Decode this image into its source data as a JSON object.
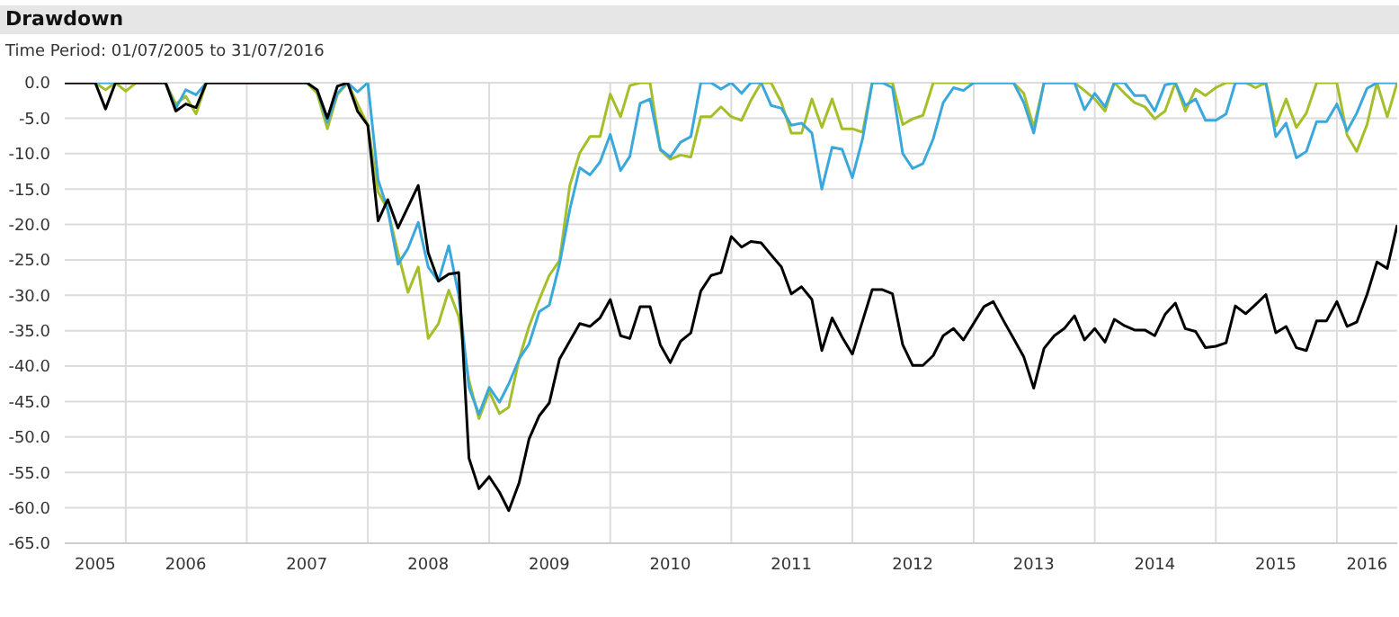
{
  "chart_data": {
    "type": "line",
    "title": "Drawdown",
    "subtitle": "Time Period: 01/07/2005 to 31/07/2016",
    "xlim": [
      "2005-07",
      "2016-07"
    ],
    "xticks": [
      {
        "value": "2005-10",
        "label": "2005"
      },
      {
        "value": "2006-01",
        "label": null
      },
      {
        "value": "2006-07",
        "label": "2006"
      },
      {
        "value": "2007-01",
        "label": null
      },
      {
        "value": "2007-07",
        "label": "2007"
      },
      {
        "value": "2008-01",
        "label": null
      },
      {
        "value": "2008-07",
        "label": "2008"
      },
      {
        "value": "2009-01",
        "label": null
      },
      {
        "value": "2009-07",
        "label": "2009"
      },
      {
        "value": "2010-01",
        "label": null
      },
      {
        "value": "2010-07",
        "label": "2010"
      },
      {
        "value": "2011-01",
        "label": null
      },
      {
        "value": "2011-07",
        "label": "2011"
      },
      {
        "value": "2012-01",
        "label": null
      },
      {
        "value": "2012-07",
        "label": "2012"
      },
      {
        "value": "2013-01",
        "label": null
      },
      {
        "value": "2013-07",
        "label": "2013"
      },
      {
        "value": "2014-01",
        "label": null
      },
      {
        "value": "2014-07",
        "label": "2014"
      },
      {
        "value": "2015-01",
        "label": null
      },
      {
        "value": "2015-07",
        "label": "2015"
      },
      {
        "value": "2016-01",
        "label": null
      },
      {
        "value": "2016-04",
        "label": "2016"
      }
    ],
    "ylim": [
      -65,
      0
    ],
    "yticks": [
      {
        "value": 0,
        "label": "0.0"
      },
      {
        "value": -5,
        "label": "-5.0"
      },
      {
        "value": -10,
        "label": "-10.0"
      },
      {
        "value": -15,
        "label": "-15.0"
      },
      {
        "value": -20,
        "label": "-20.0"
      },
      {
        "value": -25,
        "label": "-25.0"
      },
      {
        "value": -30,
        "label": "-30.0"
      },
      {
        "value": -35,
        "label": "-35.0"
      },
      {
        "value": -40,
        "label": "-40.0"
      },
      {
        "value": -45,
        "label": "-45.0"
      },
      {
        "value": -50,
        "label": "-50.0"
      },
      {
        "value": -55,
        "label": "-55.0"
      },
      {
        "value": -60,
        "label": "-60.0"
      },
      {
        "value": -65,
        "label": "-65.0"
      }
    ],
    "grid": true,
    "series": [
      {
        "color": "#a4bf2a",
        "x": [
          "2005-07",
          "2005-10",
          "2005-11",
          "2005-12",
          "2006-01",
          "2006-02",
          "2006-05",
          "2006-06",
          "2006-07",
          "2006-08",
          "2006-09",
          "2007-07",
          "2007-08",
          "2007-09",
          "2007-10",
          "2007-11",
          "2007-12",
          "2008-01",
          "2008-02",
          "2008-03",
          "2008-04",
          "2008-05",
          "2008-06",
          "2008-07",
          "2008-08",
          "2008-09",
          "2008-10",
          "2008-11",
          "2008-12",
          "2009-01",
          "2009-02",
          "2009-03",
          "2009-04",
          "2009-05",
          "2009-06",
          "2009-07",
          "2009-08",
          "2009-09",
          "2009-10",
          "2009-11",
          "2009-12",
          "2010-01",
          "2010-02",
          "2010-03",
          "2010-04",
          "2010-05",
          "2010-06",
          "2010-07",
          "2010-08",
          "2010-09",
          "2010-10",
          "2010-11",
          "2010-12",
          "2011-01",
          "2011-02",
          "2011-03",
          "2011-04",
          "2011-05",
          "2011-06",
          "2011-07",
          "2011-08",
          "2011-09",
          "2011-10",
          "2011-11",
          "2011-12",
          "2012-01",
          "2012-02",
          "2012-03",
          "2012-05",
          "2012-06",
          "2012-07",
          "2012-08",
          "2012-09",
          "2013-05",
          "2013-06",
          "2013-07",
          "2013-08",
          "2013-11",
          "2013-12",
          "2014-01",
          "2014-02",
          "2014-03",
          "2014-04",
          "2014-05",
          "2014-06",
          "2014-07",
          "2014-08",
          "2014-09",
          "2014-10",
          "2014-11",
          "2014-12",
          "2015-01",
          "2015-02",
          "2015-04",
          "2015-05",
          "2015-06",
          "2015-07",
          "2015-08",
          "2015-09",
          "2015-10",
          "2015-11",
          "2016-01",
          "2016-02",
          "2016-03",
          "2016-04",
          "2016-05",
          "2016-06",
          "2016-07"
        ],
        "values": [
          0,
          0,
          -1,
          0,
          -1.2,
          0,
          0,
          -3,
          -1.9,
          -4.4,
          0,
          0,
          -1.5,
          -6.5,
          -1.7,
          0,
          -3,
          -6,
          -15.4,
          -17.9,
          -24,
          -29.6,
          -26,
          -36.1,
          -34,
          -29.3,
          -33,
          -42,
          -47.4,
          -43.6,
          -46.7,
          -45.8,
          -39,
          -34.4,
          -30.6,
          -27.2,
          -25.1,
          -14.5,
          -9.9,
          -7.6,
          -7.6,
          -1.6,
          -4.8,
          -0.4,
          0,
          0,
          -9.5,
          -10.8,
          -10.2,
          -10.5,
          -4.8,
          -4.8,
          -3.4,
          -4.8,
          -5.3,
          -2.5,
          0,
          0,
          -2.8,
          -7.1,
          -7.1,
          -2.3,
          -6.3,
          -2.3,
          -6.5,
          -6.5,
          -7,
          0,
          0,
          -5.9,
          -5.1,
          -4.6,
          0,
          0,
          -1.5,
          -6.3,
          0,
          0,
          -1.1,
          -2.3,
          -4,
          0,
          -1.5,
          -2.8,
          -3.4,
          -5.1,
          -4,
          0,
          -4,
          -0.9,
          -1.8,
          -0.7,
          0,
          0,
          -0.7,
          0,
          -6.1,
          -2.3,
          -6.3,
          -4.3,
          0,
          0,
          -7.4,
          -9.7,
          -5.9,
          0,
          -4.8,
          0
        ]
      },
      {
        "color": "#3aa8da",
        "x": [
          "2005-07",
          "2006-05",
          "2006-06",
          "2006-07",
          "2006-08",
          "2006-09",
          "2007-07",
          "2007-08",
          "2007-09",
          "2007-10",
          "2007-11",
          "2007-12",
          "2008-01",
          "2008-02",
          "2008-03",
          "2008-04",
          "2008-05",
          "2008-06",
          "2008-07",
          "2008-08",
          "2008-09",
          "2008-10",
          "2008-11",
          "2008-12",
          "2009-01",
          "2009-02",
          "2009-03",
          "2009-04",
          "2009-05",
          "2009-06",
          "2009-07",
          "2009-08",
          "2009-09",
          "2009-10",
          "2009-11",
          "2009-12",
          "2010-01",
          "2010-02",
          "2010-03",
          "2010-04",
          "2010-05",
          "2010-06",
          "2010-07",
          "2010-08",
          "2010-09",
          "2010-10",
          "2010-11",
          "2010-12",
          "2011-01",
          "2011-02",
          "2011-03",
          "2011-04",
          "2011-05",
          "2011-06",
          "2011-07",
          "2011-08",
          "2011-09",
          "2011-10",
          "2011-11",
          "2011-12",
          "2012-01",
          "2012-02",
          "2012-03",
          "2012-04",
          "2012-05",
          "2012-06",
          "2012-07",
          "2012-08",
          "2012-09",
          "2012-10",
          "2012-11",
          "2012-12",
          "2013-01",
          "2013-05",
          "2013-06",
          "2013-07",
          "2013-08",
          "2013-11",
          "2013-12",
          "2014-01",
          "2014-02",
          "2014-03",
          "2014-04",
          "2014-05",
          "2014-06",
          "2014-07",
          "2014-08",
          "2014-09",
          "2014-10",
          "2014-11",
          "2014-12",
          "2015-01",
          "2015-02",
          "2015-03",
          "2015-06",
          "2015-07",
          "2015-08",
          "2015-09",
          "2015-10",
          "2015-11",
          "2015-12",
          "2016-01",
          "2016-02",
          "2016-03",
          "2016-04",
          "2016-05",
          "2016-07"
        ],
        "values": [
          0,
          0,
          -3.6,
          -1,
          -1.7,
          0,
          0,
          -1,
          -5.6,
          -1.5,
          0,
          -1.3,
          0,
          -13.7,
          -17.9,
          -25.6,
          -23.4,
          -19.7,
          -26,
          -28,
          -23,
          -30,
          -43,
          -46.8,
          -43,
          -45.1,
          -42.5,
          -39,
          -36.9,
          -32.3,
          -31.4,
          -25.6,
          -17.9,
          -12,
          -13,
          -11.2,
          -7.3,
          -12.4,
          -10.4,
          -2.9,
          -2.3,
          -9.4,
          -10.5,
          -8.4,
          -7.6,
          0,
          0,
          -0.9,
          0,
          -1.5,
          0,
          0,
          -3.2,
          -3.6,
          -6,
          -5.7,
          -7.1,
          -15,
          -9.1,
          -9.4,
          -13.4,
          -7.9,
          0,
          0,
          -0.7,
          -10,
          -12.1,
          -11.4,
          -7.9,
          -2.8,
          -0.7,
          -1.1,
          0,
          0,
          -2.8,
          -7.1,
          0,
          0,
          -3.8,
          -1.5,
          -3.4,
          0,
          0,
          -1.8,
          -1.8,
          -4,
          -0.3,
          0,
          -3.2,
          -2.3,
          -5.3,
          -5.3,
          -4.4,
          0,
          0,
          -7.6,
          -5.7,
          -10.6,
          -9.7,
          -5.5,
          -5.5,
          -3,
          -6.8,
          -4.3,
          -0.8,
          0,
          0
        ]
      },
      {
        "color": "#000000",
        "x": [
          "2005-07",
          "2005-10",
          "2005-11",
          "2005-12",
          "2006-05",
          "2006-06",
          "2006-07",
          "2006-08",
          "2006-09",
          "2007-07",
          "2007-08",
          "2007-09",
          "2007-10",
          "2007-11",
          "2007-12",
          "2008-01",
          "2008-02",
          "2008-03",
          "2008-04",
          "2008-06",
          "2008-07",
          "2008-08",
          "2008-09",
          "2008-10",
          "2008-11",
          "2008-12",
          "2009-01",
          "2009-02",
          "2009-03",
          "2009-04",
          "2009-05",
          "2009-06",
          "2009-07",
          "2009-08",
          "2009-10",
          "2009-11",
          "2009-12",
          "2010-01",
          "2010-02",
          "2010-03",
          "2010-04",
          "2010-05",
          "2010-06",
          "2010-07",
          "2010-08",
          "2010-09",
          "2010-10",
          "2010-11",
          "2010-12",
          "2011-01",
          "2011-02",
          "2011-03",
          "2011-04",
          "2011-05",
          "2011-06",
          "2011-07",
          "2011-08",
          "2011-09",
          "2011-10",
          "2011-11",
          "2011-12",
          "2012-01",
          "2012-02",
          "2012-03",
          "2012-04",
          "2012-05",
          "2012-06",
          "2012-07",
          "2012-08",
          "2012-09",
          "2012-10",
          "2012-11",
          "2012-12",
          "2013-02",
          "2013-03",
          "2013-04",
          "2013-05",
          "2013-06",
          "2013-07",
          "2013-08",
          "2013-09",
          "2013-10",
          "2013-11",
          "2013-12",
          "2014-01",
          "2014-02",
          "2014-03",
          "2014-04",
          "2014-05",
          "2014-06",
          "2014-07",
          "2014-08",
          "2014-09",
          "2014-10",
          "2014-11",
          "2014-12",
          "2015-01",
          "2015-02",
          "2015-03",
          "2015-04",
          "2015-05",
          "2015-06",
          "2015-07",
          "2015-08",
          "2015-09",
          "2015-10",
          "2015-11",
          "2015-12",
          "2016-01",
          "2016-02",
          "2016-03",
          "2016-04",
          "2016-05",
          "2016-06",
          "2016-07"
        ],
        "values": [
          0,
          0,
          -3.7,
          0,
          0,
          -4,
          -3,
          -3.5,
          0,
          0,
          -1,
          -5,
          -0.5,
          0,
          -4,
          -6,
          -19.5,
          -16.5,
          -20.5,
          -14.5,
          -24,
          -28,
          -27,
          -26.8,
          -53,
          -57.3,
          -55.6,
          -57.8,
          -60.4,
          -56.5,
          -50.3,
          -47,
          -45.2,
          -39,
          -34,
          -34.4,
          -33.2,
          -30.6,
          -35.7,
          -36.1,
          -31.6,
          -31.6,
          -37,
          -39.5,
          -36.5,
          -35.3,
          -29.4,
          -27.2,
          -26.8,
          -21.7,
          -23.2,
          -22.4,
          -22.6,
          -24.3,
          -26,
          -29.8,
          -28.8,
          -30.6,
          -37.8,
          -33.2,
          -35.9,
          -38.3,
          -33.6,
          -29.2,
          -29.2,
          -29.8,
          -37,
          -39.9,
          -39.9,
          -38.5,
          -35.7,
          -34.7,
          -36.3,
          -31.6,
          -30.9,
          -33.6,
          -36.1,
          -38.7,
          -43.1,
          -37.5,
          -35.7,
          -34.7,
          -32.9,
          -36.3,
          -34.7,
          -36.6,
          -33.4,
          -34.3,
          -34.9,
          -34.9,
          -35.7,
          -32.7,
          -31.1,
          -34.7,
          -35.1,
          -37.4,
          -37.2,
          -36.7,
          -31.5,
          -32.6,
          -31.3,
          -29.9,
          -35.3,
          -34.4,
          -37.4,
          -37.8,
          -33.6,
          -33.6,
          -30.9,
          -34.4,
          -33.8,
          -29.9,
          -25.3,
          -26.2,
          -20.1
        ]
      }
    ]
  }
}
